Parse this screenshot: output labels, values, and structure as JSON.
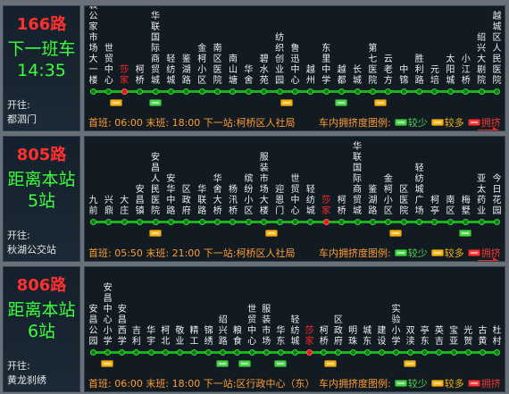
{
  "routes": [
    {
      "route": "166路",
      "status_lines": [
        "下一班车",
        "14:35"
      ],
      "start_label": "开往:",
      "start_stop": "都泗门",
      "stops": [
        "服装公家市场大一楼",
        "世贸中心",
        "莎家",
        "柯桥",
        "华联国际商贸城",
        "轻纺城",
        "鉴湖路",
        "金柯小区",
        "南区医院",
        "南山塘",
        "华舍",
        "碧水苑",
        "纺织创业园",
        "鲁迅中心",
        "越州",
        "东里中学",
        "越都",
        "长城",
        "第七医院",
        "云老方",
        "中锦",
        "胜利路",
        "元培",
        "太阳城",
        "小江桥",
        "绍兴大剧院",
        "越城区人民医院"
      ],
      "current_stop_index": 2,
      "info": "首班: 06:00   末班: 18:00   下一站:柯桥区人社局",
      "legend": {
        "label": "车内拥挤度图例:",
        "low": "较少",
        "mid": "较多",
        "high": "拥挤"
      }
    },
    {
      "route": "805路",
      "status_lines": [
        "距离本站",
        "5站"
      ],
      "start_label": "开往:",
      "start_stop": "秋湖公交站",
      "stops": [
        "九前",
        "兴鼎",
        "大庄",
        "安昌镇",
        "安昌人民医院",
        "安华中路",
        "区政府",
        "华联路",
        "华舍大桥",
        "杨汛桥",
        "缤纷小区",
        "服装市场大楼",
        "迎恩门",
        "世贸中心",
        "轻纺城",
        "莎家",
        "柯桥",
        "华联国际商贸城",
        "鉴湖路",
        "金柯小区",
        "区医院",
        "轻纺城广场",
        "柯亭",
        "南区",
        "梅墅",
        "亚太药业",
        "今日花园"
      ],
      "current_stop_index": 15,
      "info": "首班: 05:50   末班: 21:00   下一站:柯桥区人社局",
      "legend": {
        "label": "车内拥挤度图例:",
        "low": "较少",
        "mid": "较多",
        "high": "拥挤"
      }
    },
    {
      "route": "806路",
      "status_lines": [
        "距离本站",
        "6站"
      ],
      "start_label": "开往:",
      "start_stop": "黄龙刹绣",
      "stops": [
        "安昌公园",
        "安昌中心小学",
        "安昌西学",
        "吉利",
        "华宇",
        "柯北",
        "敬业",
        "精工",
        "锦绣",
        "绍兴路",
        "粮食",
        "世贸中心",
        "服装市场",
        "华东",
        "轻纺城",
        "莎家",
        "柯桥",
        "区政府",
        "明珠",
        "城东",
        "建设",
        "实验小学",
        "双渎",
        "亭东",
        "英吉",
        "宝亚",
        "光贺",
        "古黄",
        "杜村"
      ],
      "current_stop_index": 15,
      "info": "首班: 06:00   末班: 18:00   下一站:区行政中心（东）",
      "legend": {
        "label": "车内拥挤度图例:",
        "low": "较少",
        "mid": "较多",
        "high": "拥挤"
      }
    }
  ],
  "colors": {
    "route_number": "#ff3030",
    "status": "#3cff3c",
    "line": "#1bb31b",
    "current": "#ff2a2a",
    "info": "#ff9c33"
  },
  "buses": [
    [
      {
        "pos": 1.5,
        "c": "y"
      },
      {
        "pos": 4,
        "c": "g"
      },
      {
        "pos": 12.5,
        "c": "y"
      },
      {
        "pos": 16,
        "c": "g"
      },
      {
        "pos": 18.5,
        "c": "y"
      }
    ],
    [
      {
        "pos": 4,
        "c": "y"
      },
      {
        "pos": 11.5,
        "c": "y"
      },
      {
        "pos": 19.5,
        "c": "y"
      },
      {
        "pos": 24,
        "c": "g"
      }
    ],
    [
      {
        "pos": 1,
        "c": "y"
      },
      {
        "pos": 9,
        "c": "g"
      },
      {
        "pos": 10.5,
        "c": "g"
      },
      {
        "pos": 13,
        "c": "g"
      },
      {
        "pos": 16.5,
        "c": "y"
      },
      {
        "pos": 22,
        "c": "y"
      }
    ]
  ]
}
